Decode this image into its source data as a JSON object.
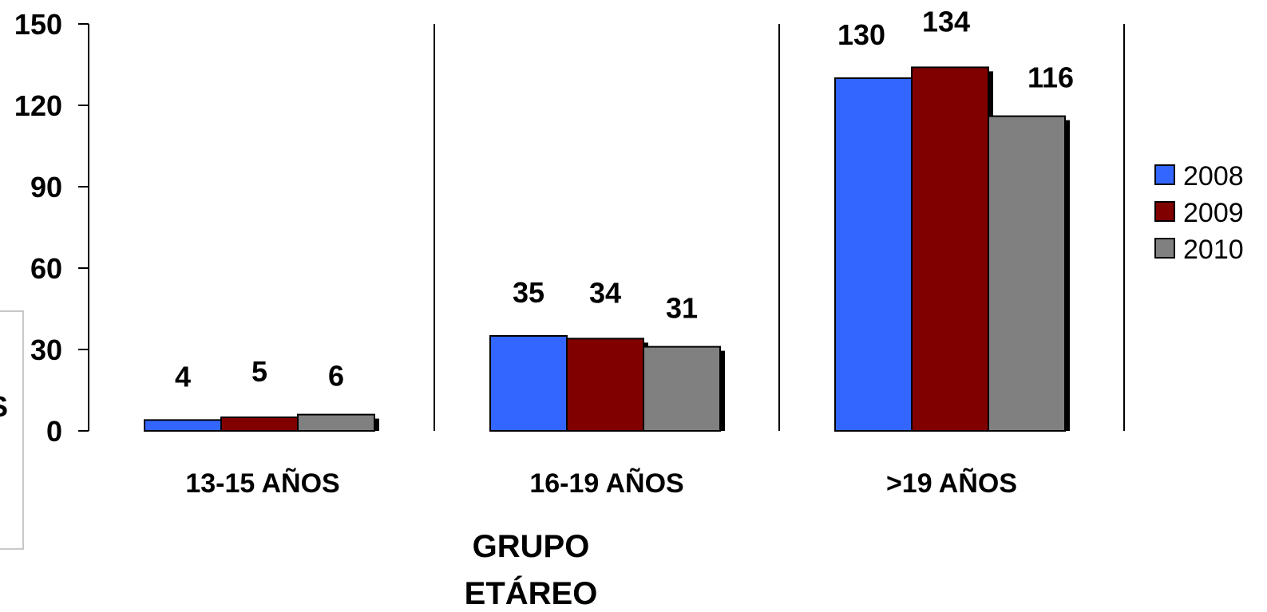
{
  "chart_data": {
    "type": "bar",
    "categories": [
      "13-15 AÑOS",
      "16-19 AÑOS",
      ">19 AÑOS"
    ],
    "series": [
      {
        "name": "2008",
        "values": [
          4,
          35,
          130
        ]
      },
      {
        "name": "2009",
        "values": [
          5,
          34,
          134
        ]
      },
      {
        "name": "2010",
        "values": [
          6,
          31,
          116
        ]
      }
    ],
    "xlabel_lines": [
      "GRUPO",
      "ETÁREO"
    ],
    "ylabel": "",
    "ylim": [
      0,
      150
    ],
    "yticks": [
      0,
      30,
      60,
      90,
      120,
      150
    ],
    "grid": false,
    "legend_position": "right",
    "colors": {
      "2008": "#3366FF",
      "2009": "#800000",
      "2010": "#808080",
      "shadow": "#000000"
    },
    "clipped_left_char": "S"
  }
}
